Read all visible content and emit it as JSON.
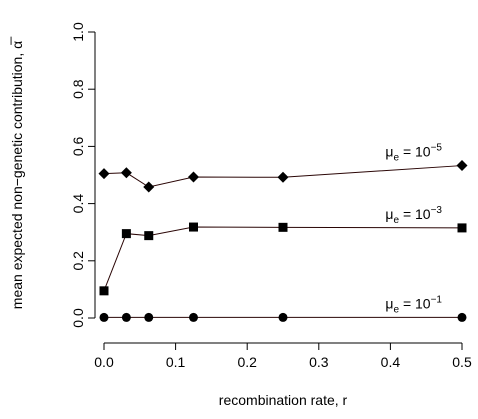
{
  "chart_data": {
    "type": "line",
    "x_label": "recombination rate, r",
    "y_label": "mean expected non−genetic contribution, α̅",
    "x": [
      0,
      0.03125,
      0.0625,
      0.125,
      0.25,
      0.5
    ],
    "xlim": [
      0,
      0.5
    ],
    "xticks": [
      {
        "value": 0,
        "label": "0.0"
      },
      0.1,
      0.2,
      0.3,
      0.4,
      0.5
    ],
    "ylim": [
      0,
      1
    ],
    "yticks": [
      {
        "value": 0,
        "label": "0.0"
      },
      0.2,
      0.4,
      0.6,
      0.8,
      {
        "value": 1,
        "label": "1.0"
      }
    ],
    "series": [
      {
        "name": {
          "symbol": "μ",
          "subscript": "e",
          "text": " = 10",
          "superscript": "−5"
        },
        "marker": "diamond",
        "color": "#000000",
        "line_color": "#2a0505",
        "values": [
          0.505,
          0.508,
          0.458,
          0.493,
          0.492,
          0.533
        ]
      },
      {
        "name": {
          "symbol": "μ",
          "subscript": "e",
          "text": " = 10",
          "superscript": "−3"
        },
        "marker": "square",
        "color": "#000000",
        "line_color": "#2a0505",
        "values": [
          0.095,
          0.295,
          0.288,
          0.318,
          0.317,
          0.315
        ]
      },
      {
        "name": {
          "symbol": "μ",
          "subscript": "e",
          "text": " = 10",
          "superscript": "−1"
        },
        "marker": "circle",
        "color": "#000000",
        "line_color": "#2a0505",
        "values": [
          0.002,
          0.002,
          0.002,
          0.002,
          0.002,
          0.002
        ]
      }
    ]
  }
}
